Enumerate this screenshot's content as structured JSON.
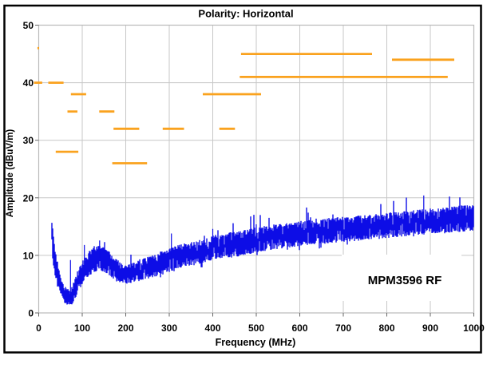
{
  "window": {
    "background": "#ffffff",
    "frame_color": "#000000"
  },
  "chart_data": {
    "type": "line",
    "title": "Polarity: Horizontal",
    "xlabel": "Frequency (MHz)",
    "ylabel": "Amplitude (dBuV/m)",
    "xlim": [
      0,
      1000
    ],
    "ylim": [
      0,
      50
    ],
    "x_ticks": [
      0,
      100,
      200,
      300,
      400,
      500,
      600,
      700,
      800,
      900,
      1000
    ],
    "y_ticks": [
      0,
      10,
      20,
      30,
      40,
      50
    ],
    "grid": true,
    "legend": "none",
    "annotation": {
      "text": "MPM3596 RF"
    },
    "colors": {
      "trace": "#0d0de6",
      "segments": "#faa21e",
      "grid": "#c7c7c7",
      "text": "#000000"
    },
    "series": [
      {
        "name": "measured-emission-trace",
        "type": "noisy_band",
        "color": "#0d0de6",
        "x_range": [
          30,
          1000
        ],
        "envelope_points": [
          [
            30,
            15.5,
            3.0
          ],
          [
            32,
            12.0,
            3.0
          ],
          [
            36,
            9.5,
            2.8
          ],
          [
            40,
            8.0,
            2.5
          ],
          [
            45,
            6.2,
            2.0
          ],
          [
            50,
            4.8,
            1.8
          ],
          [
            55,
            3.8,
            1.6
          ],
          [
            62,
            3.0,
            1.5
          ],
          [
            70,
            2.6,
            1.4
          ],
          [
            76,
            3.0,
            1.6
          ],
          [
            82,
            3.8,
            1.8
          ],
          [
            90,
            5.5,
            2.0
          ],
          [
            100,
            7.0,
            2.1
          ],
          [
            110,
            8.2,
            2.1
          ],
          [
            120,
            8.9,
            2.2
          ],
          [
            130,
            9.3,
            2.2
          ],
          [
            140,
            9.5,
            2.2
          ],
          [
            150,
            9.2,
            2.2
          ],
          [
            160,
            8.7,
            2.1
          ],
          [
            170,
            8.0,
            2.0
          ],
          [
            180,
            7.3,
            1.9
          ],
          [
            190,
            6.9,
            1.8
          ],
          [
            200,
            6.8,
            1.8
          ],
          [
            210,
            6.9,
            1.8
          ],
          [
            220,
            7.1,
            1.8
          ],
          [
            235,
            7.5,
            1.9
          ],
          [
            250,
            7.9,
            2.0
          ],
          [
            270,
            8.3,
            2.0
          ],
          [
            290,
            8.9,
            2.1
          ],
          [
            310,
            9.5,
            2.1
          ],
          [
            330,
            9.9,
            2.1
          ],
          [
            350,
            10.2,
            2.1
          ],
          [
            370,
            10.6,
            2.1
          ],
          [
            390,
            11.1,
            2.2
          ],
          [
            410,
            11.5,
            2.2
          ],
          [
            430,
            11.7,
            2.2
          ],
          [
            450,
            11.9,
            2.2
          ],
          [
            470,
            12.2,
            2.2
          ],
          [
            500,
            12.7,
            2.2
          ],
          [
            530,
            13.1,
            2.2
          ],
          [
            560,
            13.4,
            2.2
          ],
          [
            600,
            13.8,
            2.2
          ],
          [
            640,
            14.1,
            2.2
          ],
          [
            680,
            14.4,
            2.2
          ],
          [
            720,
            14.6,
            2.2
          ],
          [
            760,
            14.9,
            2.2
          ],
          [
            800,
            15.2,
            2.2
          ],
          [
            840,
            15.5,
            2.2
          ],
          [
            880,
            15.8,
            2.3
          ],
          [
            920,
            16.0,
            2.3
          ],
          [
            960,
            16.3,
            2.3
          ],
          [
            1000,
            16.6,
            2.3
          ]
        ],
        "peak_spikes": [
          [
            73,
            9.2
          ],
          [
            105,
            11.8
          ],
          [
            140,
            12.6
          ],
          [
            305,
            13.8
          ],
          [
            400,
            14.6
          ],
          [
            500,
            15.4
          ],
          [
            740,
            16.9
          ],
          [
            885,
            20.4
          ],
          [
            930,
            17.9
          ],
          [
            985,
            18.7
          ]
        ]
      },
      {
        "name": "limit-peak-segments",
        "type": "horizontal_segments",
        "color": "#faa21e",
        "thickness_px": 2.8,
        "segments": [
          [
            -3,
            1,
            46
          ],
          [
            -11,
            8,
            40
          ],
          [
            22,
            57,
            40
          ],
          [
            39,
            91,
            28
          ],
          [
            66,
            89,
            35
          ],
          [
            74,
            109,
            38
          ],
          [
            139,
            174,
            35
          ],
          [
            169,
            249,
            26
          ],
          [
            172,
            231,
            32
          ],
          [
            285,
            334,
            32
          ],
          [
            377,
            511,
            38
          ],
          [
            415,
            451,
            32
          ],
          [
            462,
            940,
            41
          ],
          [
            465,
            766,
            45
          ],
          [
            812,
            955,
            44
          ]
        ]
      }
    ]
  }
}
